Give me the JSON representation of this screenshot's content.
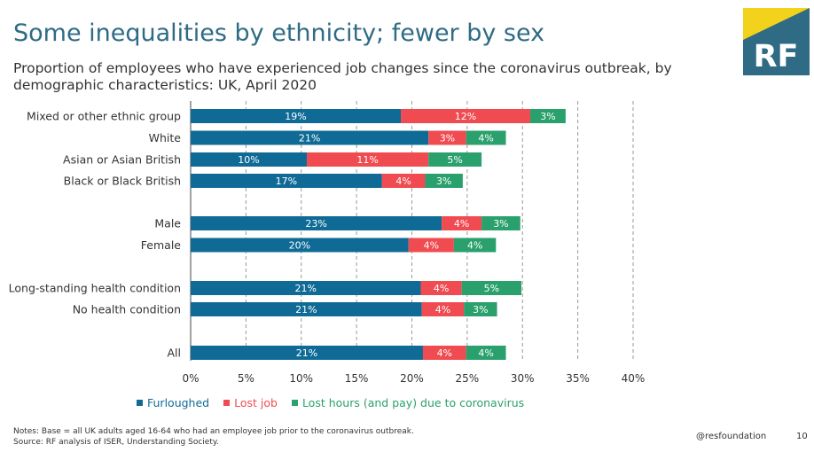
{
  "header": {
    "title": "Some inequalities by ethnicity; fewer by sex",
    "subtitle": "Proportion of employees who have experienced job changes since the coronavirus outbreak, by demographic characteristics: UK, April 2020"
  },
  "logo": {
    "text": "RF",
    "colors": {
      "yellow": "#f2d21b",
      "teal": "#2f6b85"
    }
  },
  "chart_data": {
    "type": "bar",
    "orientation": "horizontal",
    "stacked": true,
    "categories": [
      "Mixed or other ethnic group",
      "White",
      "Asian or Asian British",
      "Black or Black British",
      "Male",
      "Female",
      "Long-standing health condition",
      "No health condition",
      "All"
    ],
    "groups": [
      [
        0,
        1,
        2,
        3
      ],
      [
        4,
        5
      ],
      [
        6,
        7
      ],
      [
        8
      ]
    ],
    "series": [
      {
        "name": "Furloughed",
        "color": "#0f6b96",
        "values": [
          19,
          21.5,
          10.5,
          17.3,
          22.7,
          19.7,
          20.8,
          20.9,
          21
        ],
        "labels": [
          "19%",
          "21%",
          "10%",
          "17%",
          "23%",
          "20%",
          "21%",
          "21%",
          "21%"
        ]
      },
      {
        "name": "Lost job",
        "color": "#ef4b50",
        "values": [
          11.7,
          3.4,
          11.0,
          3.9,
          3.6,
          4.1,
          3.7,
          3.8,
          3.9
        ],
        "labels": [
          "12%",
          "3%",
          "11%",
          "4%",
          "4%",
          "4%",
          "4%",
          "4%",
          "4%"
        ]
      },
      {
        "name": "Lost hours (and pay) due to coronavirus",
        "color": "#2aa06d",
        "values": [
          3.2,
          3.6,
          4.8,
          3.4,
          3.5,
          3.8,
          5.4,
          3.0,
          3.6
        ],
        "labels": [
          "3%",
          "4%",
          "5%",
          "3%",
          "3%",
          "4%",
          "5%",
          "3%",
          "4%"
        ]
      }
    ],
    "xlim": [
      0,
      40
    ],
    "xticks": [
      0,
      5,
      10,
      15,
      20,
      25,
      30,
      35,
      40
    ],
    "xtick_labels": [
      "0%",
      "5%",
      "10%",
      "15%",
      "20%",
      "25%",
      "30%",
      "35%",
      "40%"
    ],
    "xlabel": "",
    "ylabel": "",
    "grid": "vertical dashed",
    "legend_position": "bottom-left"
  },
  "footer": {
    "notes": "Notes: Base = all UK adults aged 16-64 who had an employee job prior to the coronavirus outbreak.",
    "source": "Source: RF analysis of ISER, Understanding Society.",
    "handle": "@resfoundation",
    "page_number": "10"
  }
}
